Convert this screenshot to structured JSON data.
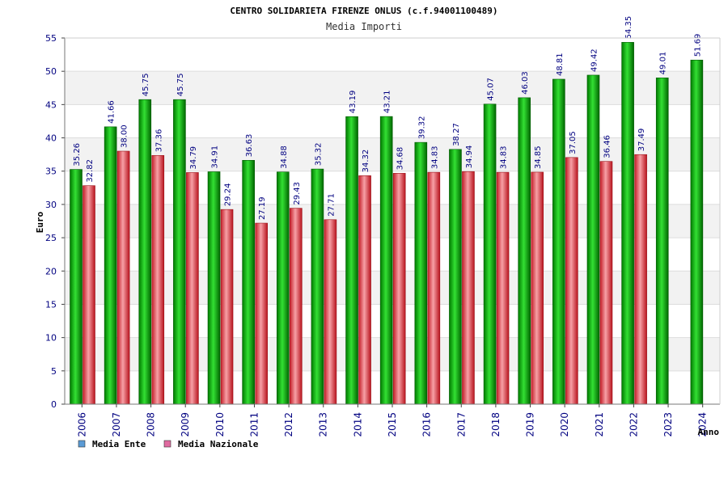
{
  "chart_data": {
    "type": "bar",
    "title": "CENTRO SOLIDARIETA FIRENZE ONLUS (c.f.94001100489)",
    "subtitle": "Media Importi",
    "xlabel": "Anno",
    "ylabel": "Euro",
    "ylim": [
      0,
      55
    ],
    "yticks": [
      "0",
      "5",
      "10",
      "15",
      "20",
      "25",
      "30",
      "35",
      "40",
      "45",
      "50",
      "55"
    ],
    "grid": true,
    "legend_position": "bottom-left",
    "categories": [
      "2006",
      "2007",
      "2008",
      "2009",
      "2010",
      "2011",
      "2012",
      "2013",
      "2014",
      "2015",
      "2016",
      "2017",
      "2018",
      "2019",
      "2020",
      "2021",
      "2022",
      "2023",
      "2024"
    ],
    "series": [
      {
        "name": "Media Ente",
        "color": "#00b000",
        "legend_color": "#5b9bd5",
        "values": [
          35.26,
          41.66,
          45.75,
          45.75,
          34.91,
          36.63,
          34.88,
          35.32,
          43.19,
          43.21,
          39.32,
          38.27,
          45.07,
          46.03,
          48.81,
          49.42,
          54.35,
          49.01,
          51.69
        ],
        "labels": [
          "35.26",
          "41.66",
          "45.75",
          "45.75",
          "34.91",
          "36.63",
          "34.88",
          "35.32",
          "43.19",
          "43.21",
          "39.32",
          "38.27",
          "45.07",
          "46.03",
          "48.81",
          "49.42",
          "54.35",
          "49.01",
          "51.69"
        ]
      },
      {
        "name": "Media Nazionale",
        "color": "#e0303a",
        "legend_color": "#e06aa0",
        "values": [
          32.82,
          38.0,
          37.36,
          34.79,
          29.24,
          27.19,
          29.43,
          27.71,
          34.32,
          34.68,
          34.83,
          34.94,
          34.83,
          34.85,
          37.05,
          36.46,
          37.49,
          null,
          null
        ],
        "labels": [
          "32.82",
          "38.00",
          "37.36",
          "34.79",
          "29.24",
          "27.19",
          "29.43",
          "27.71",
          "34.32",
          "34.68",
          "34.83",
          "34.94",
          "34.83",
          "34.85",
          "37.05",
          "36.46",
          "37.49",
          "",
          ""
        ]
      }
    ]
  }
}
